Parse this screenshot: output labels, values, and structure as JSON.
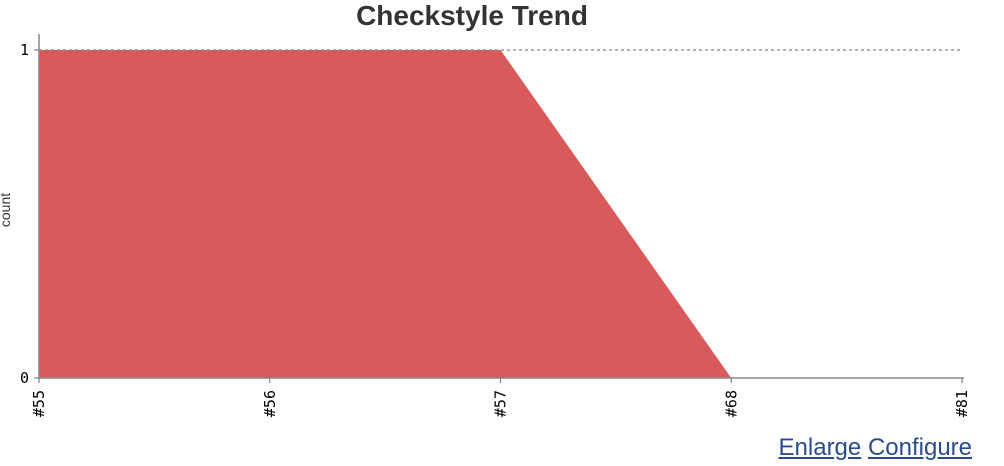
{
  "chart_data": {
    "type": "area",
    "title": "Checkstyle Trend",
    "ylabel": "count",
    "categories": [
      "#55",
      "#56",
      "#57",
      "#68",
      "#81"
    ],
    "series": [
      {
        "values": [
          1,
          1,
          1,
          0,
          0
        ]
      }
    ],
    "ylim": [
      0,
      1
    ],
    "yticks": [
      0,
      1
    ],
    "color": "#d95a5a",
    "grid": "dashed line at top",
    "legend": "none"
  },
  "links": {
    "enlarge": "Enlarge",
    "configure": "Configure"
  }
}
